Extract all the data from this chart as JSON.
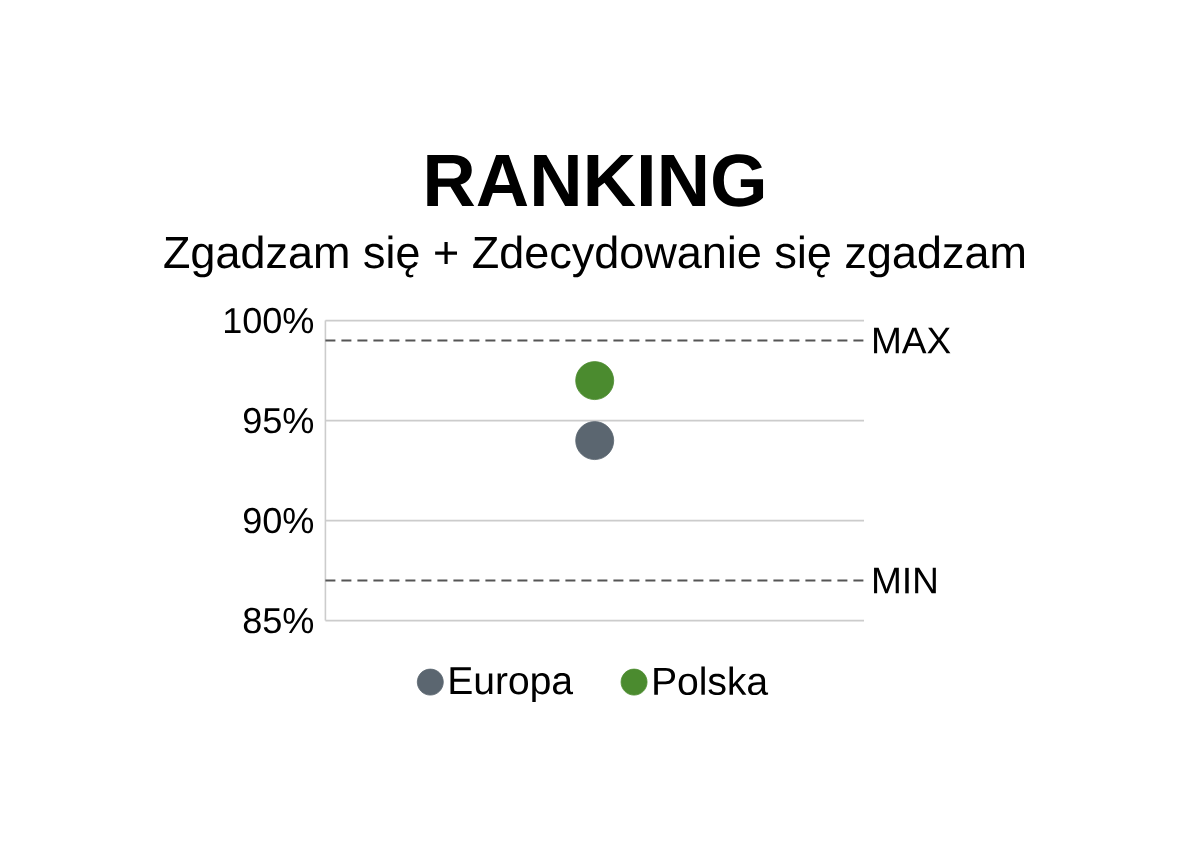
{
  "chart_data": {
    "type": "scatter",
    "title": "RANKING",
    "subtitle": "Zgadzam się + Zdecydowanie się zgadzam",
    "categories": [
      null
    ],
    "series": [
      {
        "name": "Europa",
        "color": "#5b6670",
        "values": [
          94
        ]
      },
      {
        "name": "Polska",
        "color": "#4b8b2f",
        "values": [
          97
        ]
      }
    ],
    "ylim": [
      85,
      100
    ],
    "yticks": [
      {
        "value": 85,
        "label": "85%"
      },
      {
        "value": 90,
        "label": "90%"
      },
      {
        "value": 95,
        "label": "95%"
      },
      {
        "value": 100,
        "label": "100%"
      }
    ],
    "ref_lines": [
      {
        "axis": "y",
        "value": 99,
        "label": "MAX",
        "color": "#555555",
        "line_style": "dashed"
      },
      {
        "axis": "y",
        "value": 87,
        "label": "MIN",
        "color": "#555555",
        "line_style": "dashed"
      }
    ],
    "grid": "y",
    "legend": "bottom",
    "marker": "circle"
  }
}
